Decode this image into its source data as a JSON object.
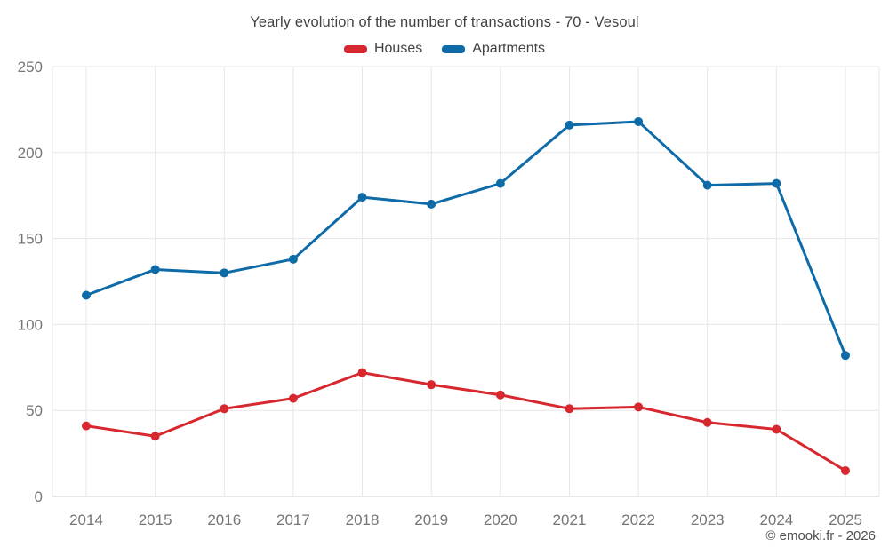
{
  "footer": "© emooki.fr - 2026",
  "chart_data": {
    "type": "line",
    "title": "Yearly evolution of the number of transactions - 70 - Vesoul",
    "categories": [
      "2014",
      "2015",
      "2016",
      "2017",
      "2018",
      "2019",
      "2020",
      "2021",
      "2022",
      "2023",
      "2024",
      "2025"
    ],
    "series": [
      {
        "name": "Houses",
        "color": "#d7282f",
        "values": [
          41,
          35,
          51,
          57,
          72,
          65,
          59,
          51,
          52,
          43,
          39,
          15
        ]
      },
      {
        "name": "Apartments",
        "color": "#0e6ba8",
        "values": [
          117,
          132,
          130,
          138,
          174,
          170,
          182,
          216,
          218,
          181,
          182,
          82
        ]
      }
    ],
    "xlabel": "",
    "ylabel": "",
    "ylim": [
      0,
      250
    ],
    "ytick_step": 50,
    "grid": true,
    "legend_position": "top",
    "label_color": "#757575",
    "grid_color": "#e7e7e7",
    "axis_line_color": "#cfcfcf"
  }
}
